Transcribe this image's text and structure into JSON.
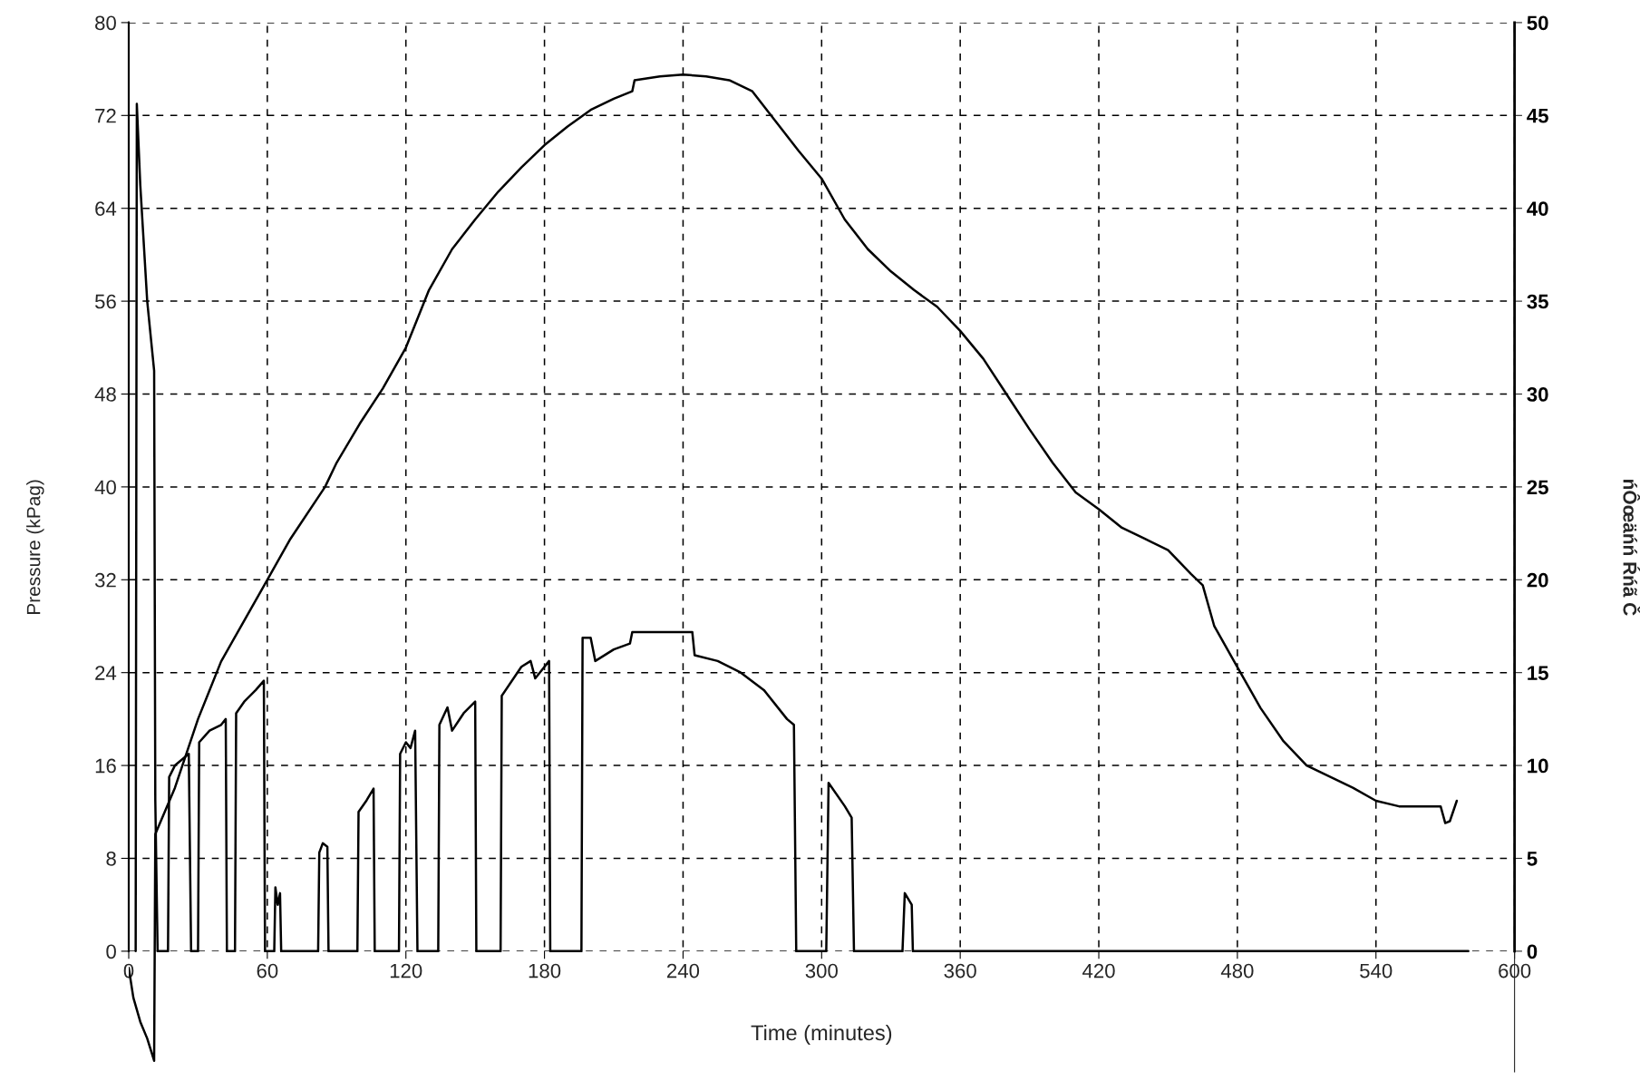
{
  "chart_data": {
    "type": "line",
    "xlabel": "Time (minutes)",
    "ylabel": "Pressure (kPag)",
    "y2label": "ńÔœäńń Ŕńã Č",
    "xlim": [
      0,
      600
    ],
    "xticks": [
      0,
      60,
      120,
      180,
      240,
      300,
      360,
      420,
      480,
      540,
      600
    ],
    "ylim": [
      -10.4,
      80
    ],
    "yticks": [
      0,
      8,
      16,
      24,
      32,
      40,
      48,
      56,
      64,
      72,
      80
    ],
    "y2lim": [
      -6.5,
      50
    ],
    "y2ticks": [
      0,
      5,
      10,
      15,
      20,
      25,
      30,
      35,
      40,
      45,
      50
    ],
    "grid": true,
    "line_style": "solid",
    "marker": "none",
    "series": [
      {
        "color": "#000000",
        "x": [
          3,
          3.5,
          5,
          8,
          11,
          11.5,
          12.5,
          17,
          17.5,
          20,
          26,
          27,
          30,
          30.5,
          35,
          40,
          42,
          42.5,
          46,
          46.5,
          50,
          55,
          58.5,
          59,
          63,
          63.5,
          64.5,
          65.5,
          66,
          82,
          82.5,
          84,
          86,
          86.5,
          99,
          99.5,
          103,
          106,
          106.5,
          117,
          117.5,
          120,
          122,
          124,
          125,
          134,
          134.5,
          138,
          140,
          145,
          150,
          150.5,
          161,
          161.5,
          170,
          174,
          176,
          180,
          182,
          182.5,
          196,
          196.5,
          200,
          202,
          210,
          217,
          218,
          235,
          244,
          245,
          255,
          265,
          275,
          285,
          288,
          289,
          302,
          303,
          310,
          313,
          314,
          335,
          336,
          339,
          339.5,
          580
        ],
        "values": [
          0,
          73,
          66,
          56,
          50,
          13,
          0,
          0,
          15,
          16,
          17,
          0,
          0,
          18,
          19,
          19.5,
          20,
          0,
          0,
          20.5,
          21.5,
          22.5,
          23.3,
          0,
          0,
          5.5,
          4,
          5,
          0,
          0,
          8.5,
          9.3,
          9,
          0,
          0,
          12,
          13,
          14,
          0,
          0,
          17,
          18,
          17.5,
          19,
          0,
          0,
          19.5,
          21,
          19,
          20.5,
          21.5,
          0,
          0,
          22,
          24.5,
          25,
          23.5,
          24.5,
          25,
          0,
          0,
          27,
          27,
          25,
          26,
          26.5,
          27.5,
          27.5,
          27.5,
          25.5,
          25,
          24,
          22.5,
          20,
          19.5,
          0,
          0,
          14.5,
          12.5,
          11.5,
          0,
          0,
          5,
          4,
          0,
          0
        ]
      },
      {
        "color": "#000000",
        "axis": "y2",
        "x": [
          0,
          2,
          5,
          8,
          11,
          11.5,
          20,
          30,
          40,
          50,
          60,
          70,
          85,
          90,
          100,
          110,
          120,
          130,
          140,
          150,
          160,
          170,
          180,
          190,
          200,
          210,
          218,
          219,
          230,
          240,
          250,
          260,
          270,
          280,
          290,
          300,
          310,
          320,
          330,
          340,
          350,
          360,
          370,
          380,
          390,
          400,
          410,
          420,
          430,
          440,
          450,
          460,
          465,
          470,
          480,
          490,
          500,
          510,
          520,
          530,
          540,
          550,
          560,
          568,
          570,
          572,
          575
        ],
        "values": [
          -0.9,
          -2.5,
          -3.8,
          -4.7,
          -5.9,
          6.3,
          8.8,
          12.5,
          15.6,
          17.8,
          20,
          22.2,
          25,
          26.3,
          28.4,
          30.3,
          32.5,
          35.6,
          37.8,
          39.4,
          40.9,
          42.2,
          43.4,
          44.4,
          45.3,
          45.9,
          46.3,
          46.9,
          47.1,
          47.2,
          47.1,
          46.9,
          46.3,
          44.7,
          43.1,
          41.6,
          39.4,
          37.8,
          36.6,
          35.6,
          34.7,
          33.4,
          31.9,
          30,
          28.1,
          26.3,
          24.7,
          23.8,
          22.8,
          22.2,
          21.6,
          20.3,
          19.7,
          17.5,
          15.3,
          13.1,
          11.3,
          10,
          9.4,
          8.8,
          8.1,
          7.8,
          7.8,
          7.8,
          6.9,
          7,
          8.1
        ]
      }
    ]
  }
}
